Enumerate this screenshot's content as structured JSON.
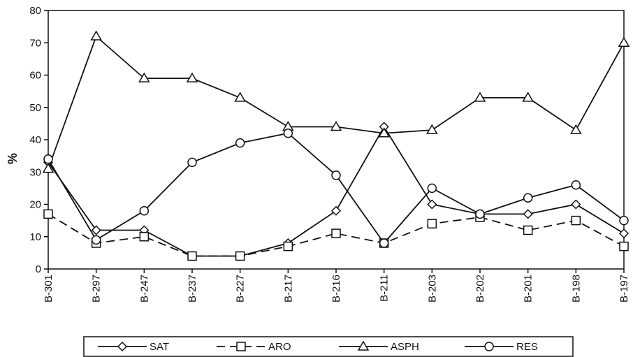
{
  "chart_data": {
    "type": "line",
    "title": "",
    "xlabel": "",
    "ylabel": "%",
    "ylim": [
      0,
      80
    ],
    "yticks": [
      0,
      10,
      20,
      30,
      40,
      50,
      60,
      70,
      80
    ],
    "grid": false,
    "legend_position": "bottom",
    "categories": [
      "B-301",
      "B-297",
      "B-247",
      "B-237",
      "B-227",
      "B-217",
      "B-216",
      "B-211",
      "B-203",
      "B-202",
      "B-201",
      "B-198",
      "B-197"
    ],
    "series": [
      {
        "name": "SAT",
        "marker": "diamond",
        "dash": "solid",
        "values": [
          33,
          12,
          12,
          4,
          4,
          8,
          18,
          44,
          20,
          17,
          17,
          20,
          11
        ]
      },
      {
        "name": "ARO",
        "marker": "square",
        "dash": "dashed",
        "values": [
          17,
          8,
          10,
          4,
          4,
          7,
          11,
          8,
          14,
          16,
          12,
          15,
          7
        ]
      },
      {
        "name": "ASPH",
        "marker": "triangle",
        "dash": "solid",
        "values": [
          31,
          72,
          59,
          59,
          53,
          44,
          44,
          42,
          43,
          53,
          53,
          43,
          70
        ]
      },
      {
        "name": "RES",
        "marker": "circle",
        "dash": "solid",
        "values": [
          34,
          9,
          18,
          33,
          39,
          42,
          29,
          8,
          25,
          17,
          22,
          26,
          15
        ]
      }
    ]
  }
}
